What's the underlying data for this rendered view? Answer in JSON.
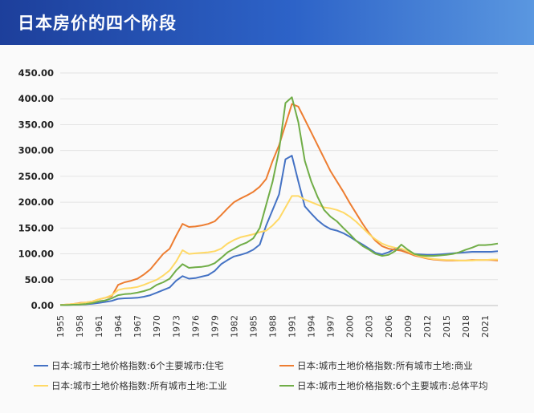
{
  "header": {
    "title": "日本房价的四个阶段"
  },
  "colors": {
    "blue": "#4472c4",
    "orange": "#ed7d31",
    "yellow": "#ffd966",
    "green": "#70ad47"
  },
  "chart_data": {
    "type": "line",
    "title": "",
    "xlabel": "",
    "ylabel": "",
    "ylim": [
      0,
      450
    ],
    "yticks": [
      "0.00",
      "50.00",
      "100.00",
      "150.00",
      "200.00",
      "250.00",
      "300.00",
      "350.00",
      "400.00",
      "450.00"
    ],
    "xticks": [
      "1955",
      "1958",
      "1961",
      "1964",
      "1967",
      "1970",
      "1973",
      "1976",
      "1979",
      "1982",
      "1985",
      "1988",
      "1991",
      "1994",
      "1997",
      "2000",
      "2003",
      "2006",
      "2009",
      "2012",
      "2015",
      "2018",
      "2021"
    ],
    "grid": true,
    "legend_position": "bottom",
    "x": [
      1955,
      1956,
      1957,
      1958,
      1959,
      1960,
      1961,
      1962,
      1963,
      1964,
      1965,
      1966,
      1967,
      1968,
      1969,
      1970,
      1971,
      1972,
      1973,
      1974,
      1975,
      1976,
      1977,
      1978,
      1979,
      1980,
      1981,
      1982,
      1983,
      1984,
      1985,
      1986,
      1987,
      1988,
      1989,
      1990,
      1991,
      1992,
      1993,
      1994,
      1995,
      1996,
      1997,
      1998,
      1999,
      2000,
      2001,
      2002,
      2003,
      2004,
      2005,
      2006,
      2007,
      2008,
      2009,
      2010,
      2011,
      2012,
      2013,
      2014,
      2015,
      2016,
      2017,
      2018,
      2019,
      2020,
      2021,
      2022,
      2023
    ],
    "series": [
      {
        "name": "日本:城市土地价格指数:6个主要城市:住宅",
        "color": "#4472c4",
        "values": [
          1,
          1,
          1.5,
          2,
          2.5,
          3.5,
          5,
          7,
          9,
          13,
          14,
          14.5,
          15,
          17,
          20,
          25,
          30,
          35,
          48,
          57,
          52,
          53,
          56,
          59,
          67,
          80,
          88,
          95,
          98,
          102,
          108,
          118,
          155,
          185,
          215,
          283,
          290,
          240,
          192,
          178,
          165,
          155,
          148,
          145,
          140,
          133,
          125,
          118,
          110,
          102,
          99,
          103,
          110,
          107,
          102,
          100,
          99,
          98,
          98,
          99,
          100,
          101,
          102,
          103,
          104,
          104,
          104,
          104,
          105
        ]
      },
      {
        "name": "日本:城市土地价格指数:所有城市土地:商业",
        "color": "#ed7d31",
        "values": [
          1,
          2,
          3,
          5,
          6,
          8,
          12,
          15,
          18,
          40,
          45,
          48,
          52,
          60,
          70,
          85,
          100,
          110,
          135,
          158,
          152,
          153,
          155,
          158,
          163,
          175,
          188,
          200,
          207,
          213,
          220,
          230,
          245,
          280,
          310,
          350,
          390,
          385,
          360,
          335,
          310,
          285,
          260,
          240,
          220,
          198,
          178,
          158,
          140,
          125,
          115,
          110,
          108,
          106,
          102,
          97,
          94,
          91,
          89,
          88,
          87,
          87,
          87,
          87,
          88,
          88,
          88,
          88,
          87
        ]
      },
      {
        "name": "日本:城市土地价格指数:所有城市土地:工业",
        "color": "#ffd966",
        "values": [
          1,
          2,
          3,
          4,
          6,
          8,
          12,
          15,
          20,
          30,
          33,
          34,
          36,
          40,
          45,
          50,
          58,
          68,
          85,
          107,
          100,
          101,
          102,
          103,
          105,
          110,
          120,
          127,
          132,
          135,
          138,
          142,
          145,
          155,
          168,
          190,
          212,
          212,
          205,
          200,
          195,
          190,
          188,
          185,
          180,
          172,
          162,
          150,
          138,
          128,
          120,
          115,
          112,
          110,
          105,
          99,
          95,
          92,
          90,
          89,
          88,
          88,
          87,
          87,
          87,
          88,
          88,
          89,
          89
        ]
      },
      {
        "name": "日本:城市土地价格指数:6个主要城市:总体平均",
        "color": "#70ad47",
        "values": [
          1,
          1,
          1.5,
          2,
          3,
          5,
          8,
          10,
          14,
          20,
          22,
          23,
          25,
          28,
          32,
          40,
          45,
          52,
          68,
          80,
          73,
          74,
          75,
          77,
          82,
          92,
          103,
          110,
          117,
          122,
          130,
          150,
          195,
          240,
          300,
          392,
          403,
          355,
          280,
          240,
          210,
          185,
          172,
          163,
          150,
          138,
          125,
          115,
          108,
          100,
          96,
          98,
          105,
          118,
          108,
          100,
          97,
          96,
          96,
          97,
          98,
          100,
          103,
          108,
          112,
          117,
          117,
          118,
          120
        ]
      }
    ]
  }
}
